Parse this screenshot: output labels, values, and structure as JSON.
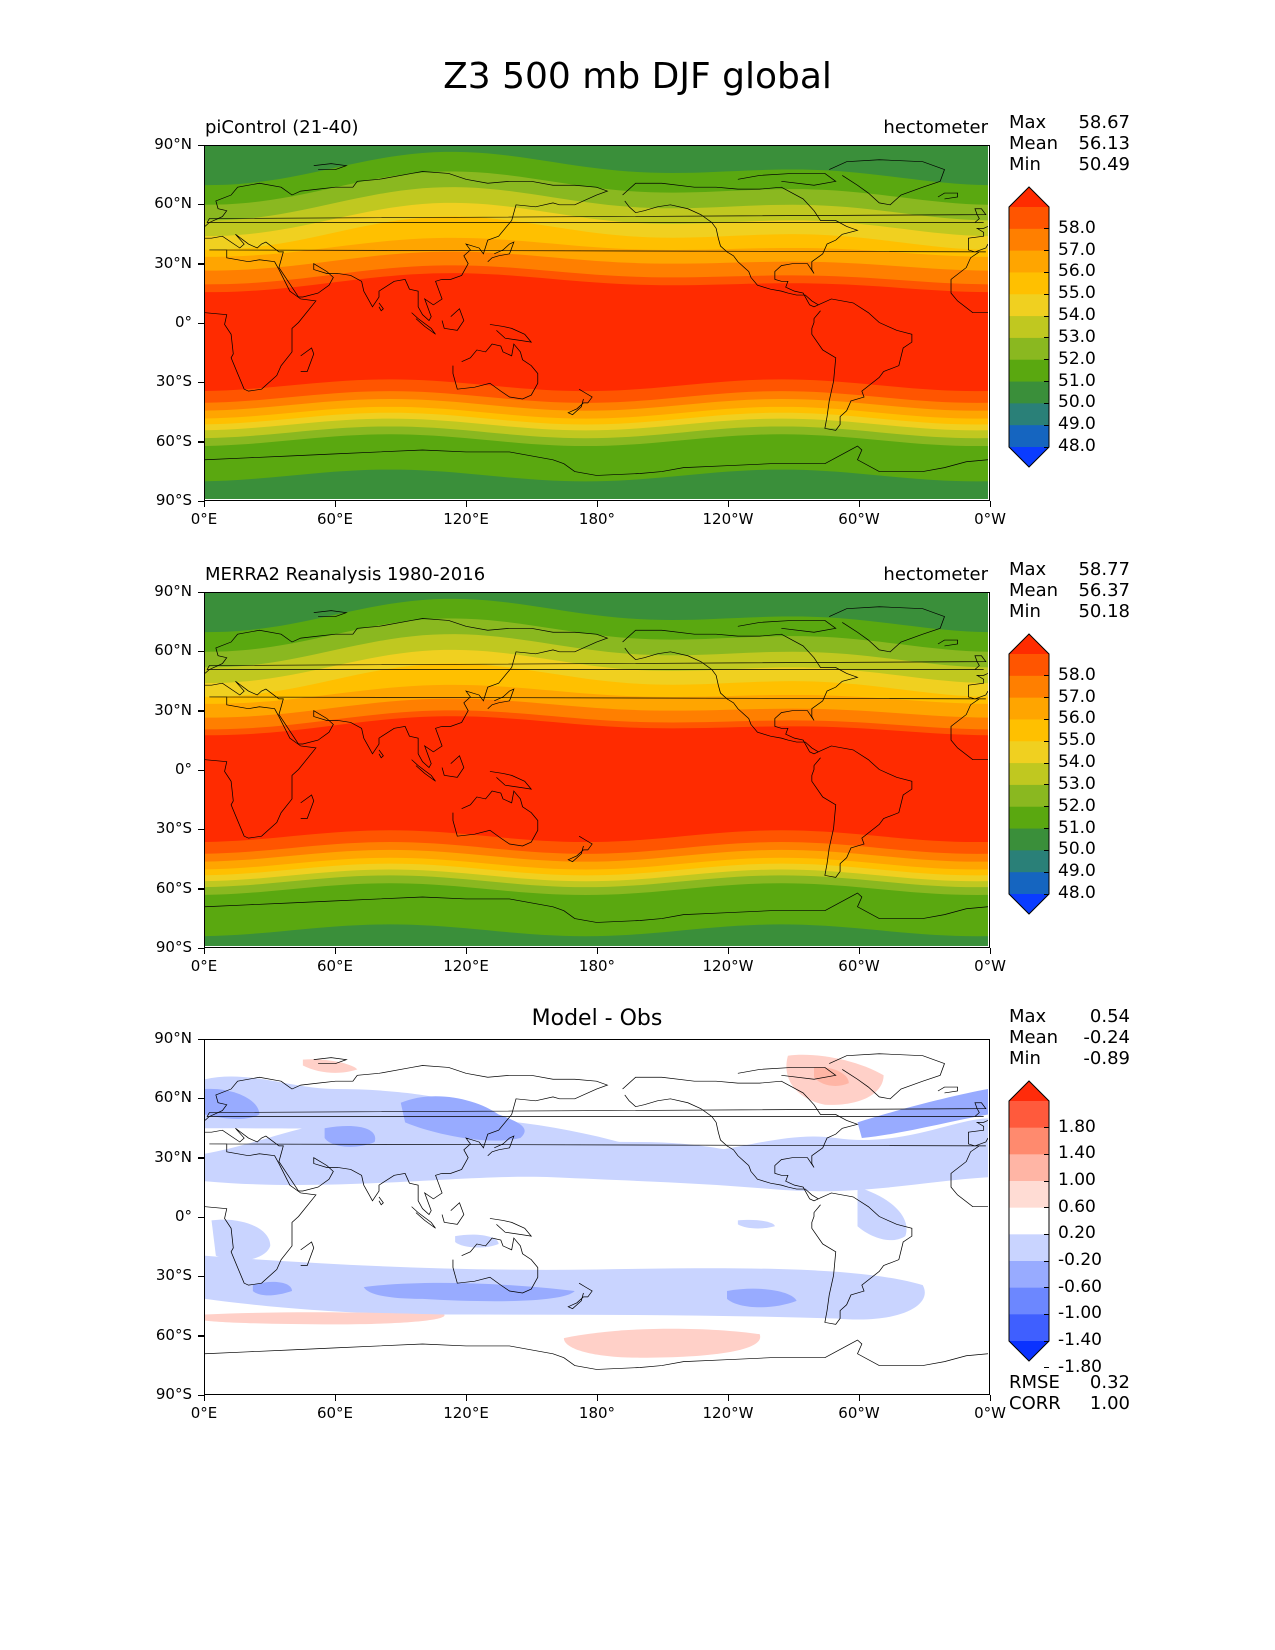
{
  "title": "Z3 500 mb DJF global",
  "axes": {
    "lat_ticks": [
      "90°N",
      "60°N",
      "30°N",
      "0°",
      "30°S",
      "60°S",
      "90°S"
    ],
    "lon_ticks": [
      "0°E",
      "60°E",
      "120°E",
      "180°",
      "120°W",
      "60°W",
      "0°W"
    ]
  },
  "panels": [
    {
      "id": "test",
      "left_title": "piControl (21-40)",
      "right_title": "hectometer",
      "center_title": "",
      "stats": [
        {
          "label": "Max",
          "value": "58.67"
        },
        {
          "label": "Mean",
          "value": "56.13"
        },
        {
          "label": "Min",
          "value": "50.49"
        }
      ],
      "colorbar_labels": [
        "58.0",
        "57.0",
        "56.0",
        "55.0",
        "54.0",
        "53.0",
        "52.0",
        "51.0",
        "50.0",
        "49.0",
        "48.0"
      ],
      "colorbar_colors": [
        "#ff2b00",
        "#ff5500",
        "#ff7f00",
        "#ffa500",
        "#ffc000",
        "#f0d020",
        "#c0c820",
        "#8ab820",
        "#5aa810",
        "#3a8f3a",
        "#2a8078",
        "#1565c0",
        "#0a3cff"
      ],
      "bands_north_to_south": [
        {
          "lat": 90,
          "color": "#3a8f3a"
        },
        {
          "lat": 78,
          "color": "#5aa810"
        },
        {
          "lat": 68,
          "color": "#8ab820"
        },
        {
          "lat": 60,
          "color": "#c0c820"
        },
        {
          "lat": 52,
          "color": "#f0d020"
        },
        {
          "lat": 45,
          "color": "#ffc000"
        },
        {
          "lat": 38,
          "color": "#ffa500"
        },
        {
          "lat": 31,
          "color": "#ff7f00"
        },
        {
          "lat": 24,
          "color": "#ff5500"
        },
        {
          "lat": 20,
          "color": "#ff2b00"
        },
        {
          "lat": -32,
          "color": "#ff5500"
        },
        {
          "lat": -38,
          "color": "#ff7f00"
        },
        {
          "lat": -42,
          "color": "#ffa500"
        },
        {
          "lat": -46,
          "color": "#ffc000"
        },
        {
          "lat": -49,
          "color": "#f0d020"
        },
        {
          "lat": -52,
          "color": "#c0c820"
        },
        {
          "lat": -56,
          "color": "#8ab820"
        },
        {
          "lat": -60,
          "color": "#5aa810"
        },
        {
          "lat": -78,
          "color": "#3a8f3a"
        }
      ]
    },
    {
      "id": "reference",
      "left_title": "MERRA2 Reanalysis 1980-2016",
      "right_title": "hectometer",
      "center_title": "",
      "stats": [
        {
          "label": "Max",
          "value": "58.77"
        },
        {
          "label": "Mean",
          "value": "56.37"
        },
        {
          "label": "Min",
          "value": "50.18"
        }
      ],
      "colorbar_labels": [
        "58.0",
        "57.0",
        "56.0",
        "55.0",
        "54.0",
        "53.0",
        "52.0",
        "51.0",
        "50.0",
        "49.0",
        "48.0"
      ],
      "colorbar_colors": [
        "#ff2b00",
        "#ff5500",
        "#ff7f00",
        "#ffa500",
        "#ffc000",
        "#f0d020",
        "#c0c820",
        "#8ab820",
        "#5aa810",
        "#3a8f3a",
        "#2a8078",
        "#1565c0",
        "#0a3cff"
      ],
      "bands_north_to_south": [
        {
          "lat": 90,
          "color": "#3a8f3a"
        },
        {
          "lat": 78,
          "color": "#5aa810"
        },
        {
          "lat": 68,
          "color": "#8ab820"
        },
        {
          "lat": 60,
          "color": "#c0c820"
        },
        {
          "lat": 52,
          "color": "#f0d020"
        },
        {
          "lat": 45,
          "color": "#ffc000"
        },
        {
          "lat": 38,
          "color": "#ffa500"
        },
        {
          "lat": 31,
          "color": "#ff7f00"
        },
        {
          "lat": 25,
          "color": "#ff5500"
        },
        {
          "lat": 22,
          "color": "#ff2b00"
        },
        {
          "lat": -34,
          "color": "#ff5500"
        },
        {
          "lat": -40,
          "color": "#ff7f00"
        },
        {
          "lat": -44,
          "color": "#ffa500"
        },
        {
          "lat": -48,
          "color": "#ffc000"
        },
        {
          "lat": -51,
          "color": "#f0d020"
        },
        {
          "lat": -54,
          "color": "#c0c820"
        },
        {
          "lat": -57,
          "color": "#8ab820"
        },
        {
          "lat": -61,
          "color": "#5aa810"
        },
        {
          "lat": -82,
          "color": "#3a8f3a"
        }
      ]
    },
    {
      "id": "diff",
      "left_title": "",
      "right_title": "",
      "center_title": "Model - Obs",
      "stats": [
        {
          "label": "Max",
          "value": "0.54"
        },
        {
          "label": "Mean",
          "value": "-0.24"
        },
        {
          "label": "Min",
          "value": "-0.89"
        }
      ],
      "colorbar_labels": [
        "1.80",
        "1.40",
        "1.00",
        "0.60",
        "0.20",
        "-0.20",
        "-0.60",
        "-1.00",
        "-1.40",
        "-1.80"
      ],
      "colorbar_colors": [
        "#ff2b0a",
        "#ff5a3c",
        "#ff8a6e",
        "#ffb5a5",
        "#ffdcd4",
        "#ffffff",
        "#c9d4ff",
        "#98abff",
        "#6c87ff",
        "#3f5fff",
        "#0a32ff"
      ],
      "bottom_stats": [
        {
          "label": "RMSE",
          "value": "0.32"
        },
        {
          "label": "CORR",
          "value": "1.00"
        }
      ]
    }
  ]
}
